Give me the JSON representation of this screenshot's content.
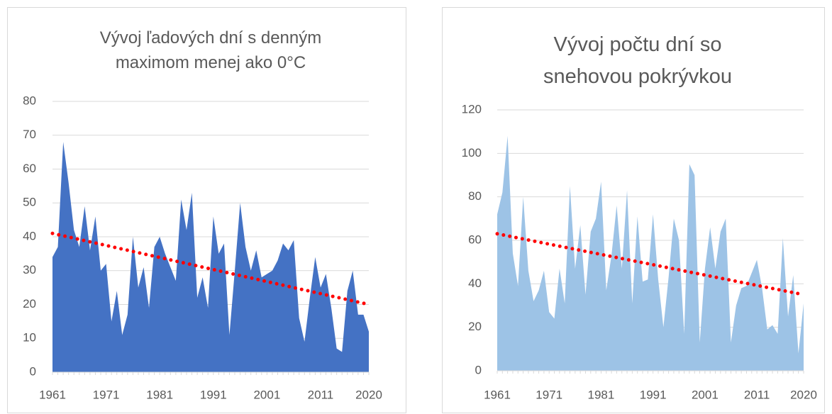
{
  "chart_data": [
    {
      "type": "area",
      "title": "Vývoj ľadových dní s denným maximom menej ako 0°C",
      "color": "#4472c4",
      "x": [
        1961,
        1962,
        1963,
        1964,
        1965,
        1966,
        1967,
        1968,
        1969,
        1970,
        1971,
        1972,
        1973,
        1974,
        1975,
        1976,
        1977,
        1978,
        1979,
        1980,
        1981,
        1982,
        1983,
        1984,
        1985,
        1986,
        1987,
        1988,
        1989,
        1990,
        1991,
        1992,
        1993,
        1994,
        1995,
        1996,
        1997,
        1998,
        1999,
        2000,
        2001,
        2002,
        2003,
        2004,
        2005,
        2006,
        2007,
        2008,
        2009,
        2010,
        2011,
        2012,
        2013,
        2014,
        2015,
        2016,
        2017,
        2018,
        2019,
        2020
      ],
      "values": [
        34,
        37,
        68,
        56,
        42,
        37,
        49,
        36,
        46,
        30,
        32,
        15,
        24,
        11,
        17,
        40,
        25,
        31,
        19,
        37,
        40,
        35,
        31,
        27,
        51,
        42,
        53,
        22,
        28,
        19,
        46,
        35,
        38,
        11,
        30,
        50,
        37,
        30,
        36,
        28,
        29,
        30,
        33,
        38,
        36,
        39,
        16,
        9,
        22,
        34,
        25,
        29,
        19,
        7,
        6,
        24,
        30,
        17,
        17,
        12
      ],
      "trend": {
        "color": "#ff0000",
        "x": [
          1961,
          2020
        ],
        "values": [
          41,
          20
        ]
      },
      "xlim": [
        1961,
        2020
      ],
      "xticks": [
        1961,
        1971,
        1981,
        1991,
        2001,
        2011,
        2020
      ],
      "ylim": [
        0,
        80
      ],
      "yticks": [
        0,
        10,
        20,
        30,
        40,
        50,
        60,
        70,
        80
      ],
      "grid": true
    },
    {
      "type": "area",
      "title": "Vývoj počtu dní so snehovou pokrývkou",
      "color": "#9dc3e6",
      "x": [
        1961,
        1962,
        1963,
        1964,
        1965,
        1966,
        1967,
        1968,
        1969,
        1970,
        1971,
        1972,
        1973,
        1974,
        1975,
        1976,
        1977,
        1978,
        1979,
        1980,
        1981,
        1982,
        1983,
        1984,
        1985,
        1986,
        1987,
        1988,
        1989,
        1990,
        1991,
        1992,
        1993,
        1994,
        1995,
        1996,
        1997,
        1998,
        1999,
        2000,
        2001,
        2002,
        2003,
        2004,
        2005,
        2006,
        2007,
        2008,
        2009,
        2010,
        2011,
        2012,
        2013,
        2014,
        2015,
        2016,
        2017,
        2018,
        2019,
        2020
      ],
      "values": [
        72,
        82,
        108,
        54,
        39,
        80,
        46,
        32,
        37,
        46,
        27,
        24,
        47,
        31,
        85,
        47,
        67,
        35,
        64,
        70,
        87,
        37,
        53,
        76,
        47,
        83,
        31,
        71,
        41,
        42,
        72,
        42,
        20,
        43,
        70,
        60,
        17,
        95,
        90,
        13,
        47,
        66,
        47,
        64,
        70,
        13,
        30,
        38,
        39,
        45,
        51,
        38,
        19,
        21,
        17,
        61,
        25,
        44,
        8,
        31
      ],
      "trend": {
        "color": "#ff0000",
        "x": [
          1961,
          2020
        ],
        "values": [
          63,
          35
        ]
      },
      "xlim": [
        1961,
        2020
      ],
      "xticks": [
        1961,
        1971,
        1981,
        1991,
        2001,
        2011,
        2020
      ],
      "ylim": [
        0,
        120
      ],
      "yticks": [
        0,
        20,
        40,
        60,
        80,
        100,
        120
      ],
      "grid": true
    }
  ]
}
